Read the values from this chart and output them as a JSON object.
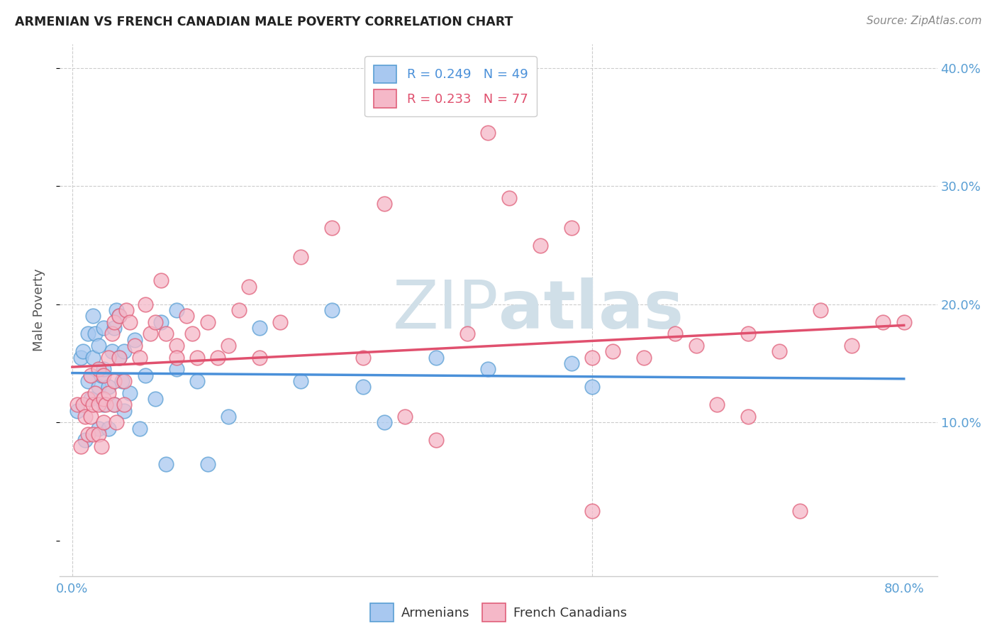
{
  "title": "ARMENIAN VS FRENCH CANADIAN MALE POVERTY CORRELATION CHART",
  "source": "Source: ZipAtlas.com",
  "xlabel_armenians": "Armenians",
  "xlabel_french": "French Canadians",
  "ylabel": "Male Poverty",
  "r_armenian": 0.249,
  "n_armenian": 49,
  "r_french": 0.233,
  "n_french": 77,
  "xlim": [
    0.0,
    0.8
  ],
  "ylim": [
    -0.03,
    0.42
  ],
  "color_armenian_fill": "#a8c8f0",
  "color_armenian_edge": "#5a9fd4",
  "color_french_fill": "#f5b8c8",
  "color_french_edge": "#e0607a",
  "color_armenian_line": "#4a90d9",
  "color_french_line": "#e0506e",
  "watermark_text_color": "#d0dfe8",
  "grid_color": "#cccccc",
  "tick_color": "#5a9fd4",
  "background_color": "#ffffff",
  "armenian_x": [
    0.005,
    0.008,
    0.01,
    0.012,
    0.015,
    0.015,
    0.018,
    0.02,
    0.02,
    0.022,
    0.025,
    0.025,
    0.025,
    0.028,
    0.03,
    0.03,
    0.03,
    0.035,
    0.035,
    0.038,
    0.04,
    0.04,
    0.042,
    0.045,
    0.045,
    0.048,
    0.05,
    0.05,
    0.055,
    0.06,
    0.065,
    0.07,
    0.08,
    0.085,
    0.09,
    0.1,
    0.1,
    0.12,
    0.13,
    0.15,
    0.18,
    0.22,
    0.25,
    0.28,
    0.3,
    0.35,
    0.4,
    0.48,
    0.5
  ],
  "armenian_y": [
    0.11,
    0.155,
    0.16,
    0.085,
    0.175,
    0.135,
    0.12,
    0.19,
    0.155,
    0.175,
    0.095,
    0.13,
    0.165,
    0.14,
    0.115,
    0.145,
    0.18,
    0.095,
    0.13,
    0.16,
    0.115,
    0.18,
    0.195,
    0.155,
    0.19,
    0.135,
    0.11,
    0.16,
    0.125,
    0.17,
    0.095,
    0.14,
    0.12,
    0.185,
    0.065,
    0.145,
    0.195,
    0.135,
    0.065,
    0.105,
    0.18,
    0.135,
    0.195,
    0.13,
    0.1,
    0.155,
    0.145,
    0.15,
    0.13
  ],
  "french_x": [
    0.005,
    0.008,
    0.01,
    0.012,
    0.015,
    0.015,
    0.018,
    0.018,
    0.02,
    0.02,
    0.022,
    0.025,
    0.025,
    0.025,
    0.028,
    0.03,
    0.03,
    0.03,
    0.032,
    0.035,
    0.035,
    0.038,
    0.04,
    0.04,
    0.04,
    0.042,
    0.045,
    0.045,
    0.05,
    0.05,
    0.052,
    0.055,
    0.06,
    0.065,
    0.07,
    0.075,
    0.08,
    0.085,
    0.09,
    0.1,
    0.1,
    0.11,
    0.115,
    0.12,
    0.13,
    0.14,
    0.15,
    0.16,
    0.17,
    0.18,
    0.2,
    0.22,
    0.25,
    0.28,
    0.3,
    0.32,
    0.35,
    0.38,
    0.4,
    0.42,
    0.45,
    0.48,
    0.5,
    0.52,
    0.55,
    0.58,
    0.6,
    0.62,
    0.65,
    0.68,
    0.7,
    0.72,
    0.75,
    0.78,
    0.8,
    0.5,
    0.65
  ],
  "french_y": [
    0.115,
    0.08,
    0.115,
    0.105,
    0.09,
    0.12,
    0.14,
    0.105,
    0.115,
    0.09,
    0.125,
    0.09,
    0.115,
    0.145,
    0.08,
    0.12,
    0.14,
    0.1,
    0.115,
    0.125,
    0.155,
    0.175,
    0.115,
    0.135,
    0.185,
    0.1,
    0.155,
    0.19,
    0.135,
    0.115,
    0.195,
    0.185,
    0.165,
    0.155,
    0.2,
    0.175,
    0.185,
    0.22,
    0.175,
    0.165,
    0.155,
    0.19,
    0.175,
    0.155,
    0.185,
    0.155,
    0.165,
    0.195,
    0.215,
    0.155,
    0.185,
    0.24,
    0.265,
    0.155,
    0.285,
    0.105,
    0.085,
    0.175,
    0.345,
    0.29,
    0.25,
    0.265,
    0.025,
    0.16,
    0.155,
    0.175,
    0.165,
    0.115,
    0.105,
    0.16,
    0.025,
    0.195,
    0.165,
    0.185,
    0.185,
    0.155,
    0.175
  ]
}
